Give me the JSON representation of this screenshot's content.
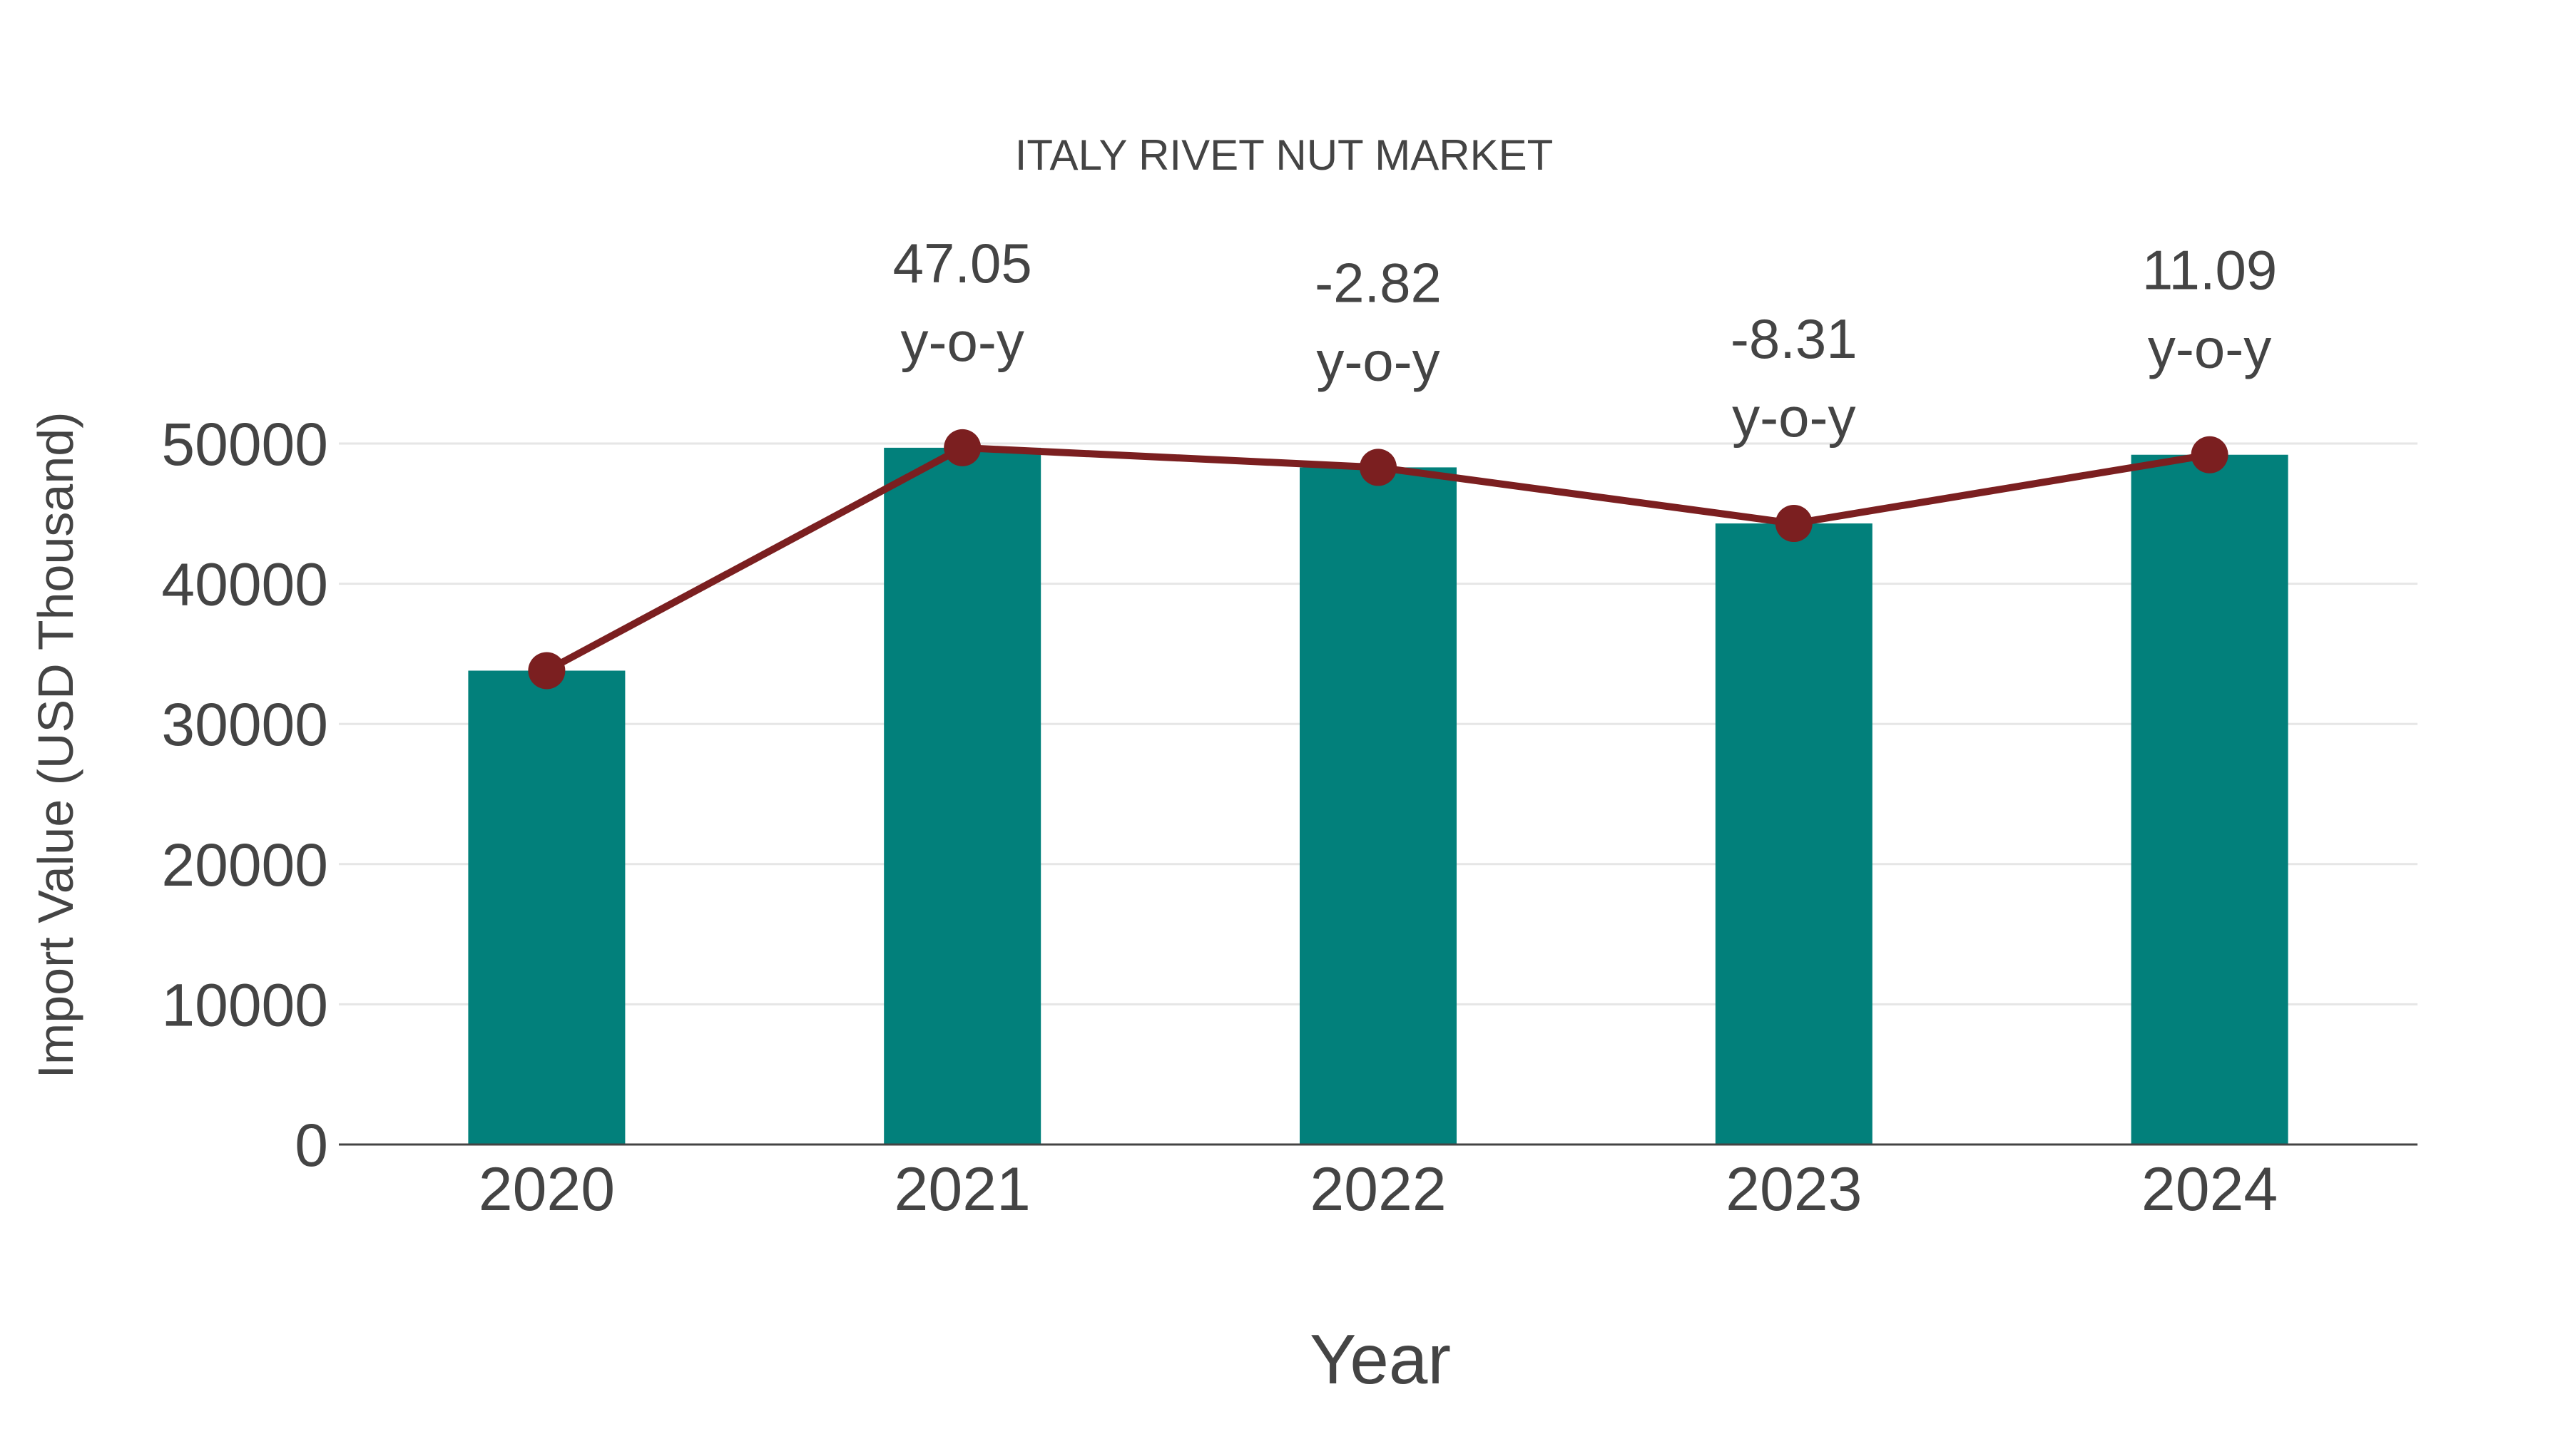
{
  "chart_data": {
    "type": "bar",
    "title": "ITALY RIVET NUT MARKET",
    "xlabel": "Year",
    "ylabel": "Import Value (USD Thousand)",
    "categories": [
      "2020",
      "2021",
      "2022",
      "2023",
      "2024"
    ],
    "series": [
      {
        "name": "Import Value",
        "type": "bar",
        "color": "#02807B",
        "values": [
          33800,
          49700,
          48300,
          44300,
          49200
        ]
      },
      {
        "name": "Import Value Trend",
        "type": "line",
        "color": "#7B1F20",
        "values": [
          33800,
          49700,
          48300,
          44300,
          49200
        ]
      }
    ],
    "annotations": [
      {
        "category": "2021",
        "value": "47.05",
        "suffix": "y-o-y"
      },
      {
        "category": "2022",
        "value": "-2.82",
        "suffix": "y-o-y"
      },
      {
        "category": "2023",
        "value": "-8.31",
        "suffix": "y-o-y"
      },
      {
        "category": "2024",
        "value": "11.09",
        "suffix": "y-o-y"
      }
    ],
    "yticks": [
      "0",
      "10000",
      "20000",
      "30000",
      "40000",
      "50000"
    ],
    "ylim": [
      0,
      50000
    ],
    "grid": true,
    "legend": "none"
  }
}
